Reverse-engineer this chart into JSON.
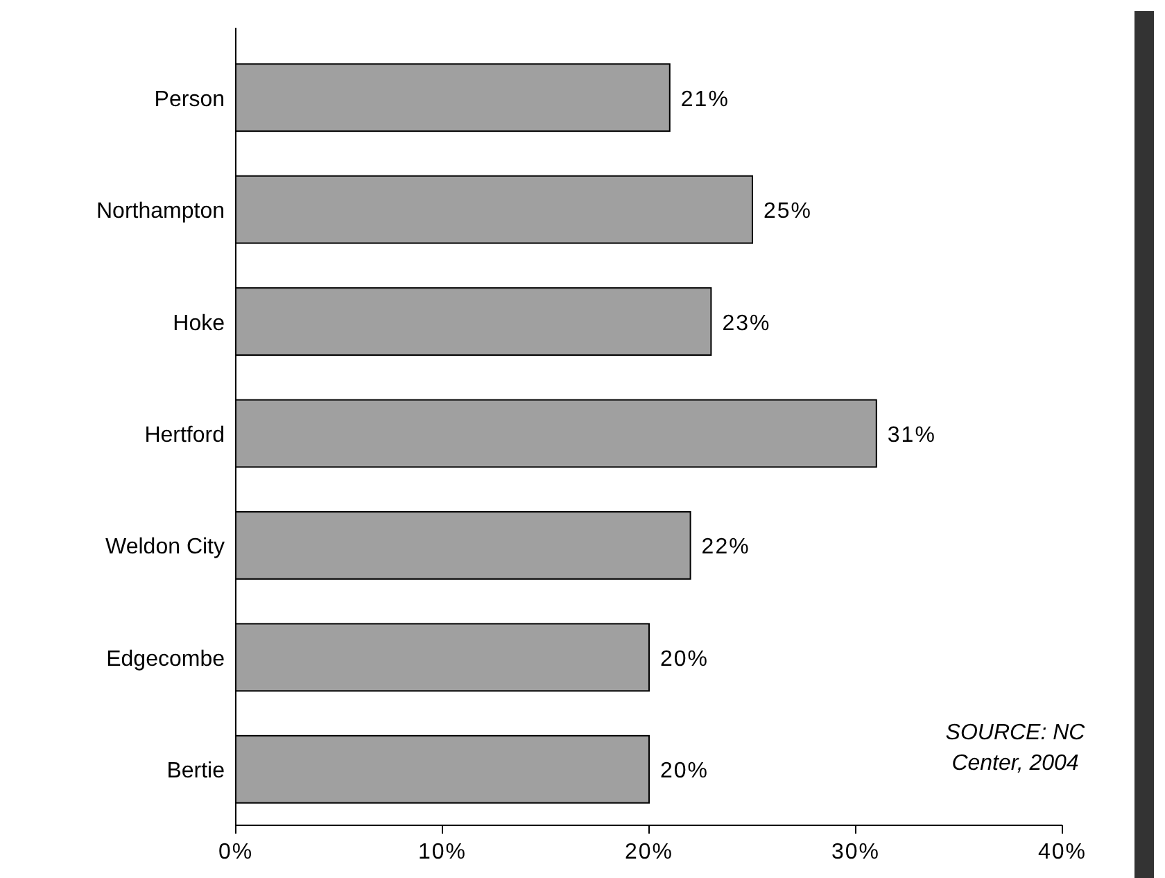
{
  "chart_data": {
    "type": "bar",
    "orientation": "horizontal",
    "categories": [
      "Person",
      "Northampton",
      "Hoke",
      "Hertford",
      "Weldon City",
      "Edgecombe",
      "Bertie"
    ],
    "values": [
      21,
      25,
      23,
      31,
      22,
      20,
      20
    ],
    "color": "#a0a0a0",
    "value_labels": [
      "21%",
      "25%",
      "23%",
      "31%",
      "22%",
      "20%",
      "20%"
    ],
    "xlim": [
      0,
      40
    ],
    "xticks": [
      {
        "value": 0,
        "label": "0%"
      },
      {
        "value": 10,
        "label": "10%"
      },
      {
        "value": 20,
        "label": "20%"
      },
      {
        "value": 30,
        "label": "30%"
      },
      {
        "value": 40,
        "label": "40%"
      }
    ],
    "annotations": [
      "SOURCE: NC Center, 2004"
    ]
  }
}
